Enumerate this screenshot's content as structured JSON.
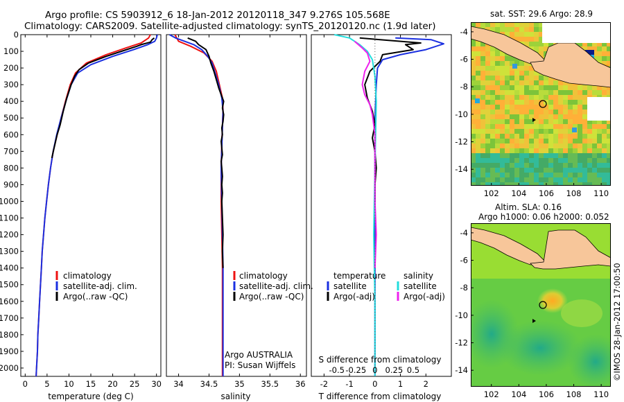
{
  "header": {
    "line1": "Argo profile: CS 5903912_6 18-Jan-2012 20120118_347 9.276S 105.568E",
    "line2": "Climatology: CARS2009. Satellite-adjusted climatology: synTS_20120120.nc (1.9d later)"
  },
  "colors": {
    "climatology": "#ee1111",
    "satellite": "#1a2fe0",
    "argo": "#000000",
    "sat_salt": "#22dddd",
    "argo_adj": "#ee22ee",
    "land": "#f7c69a",
    "sea": "#88cc44"
  },
  "chart_data": [
    {
      "type": "line",
      "name": "temperature",
      "xlabel": "temperature (deg C)",
      "xlim": [
        -1,
        31
      ],
      "xticks": [
        0,
        5,
        10,
        15,
        20,
        25,
        30
      ],
      "ylim": [
        0,
        2050
      ],
      "yticks": [
        0,
        100,
        200,
        300,
        400,
        500,
        600,
        700,
        800,
        900,
        1000,
        1100,
        1200,
        1300,
        1400,
        1500,
        1600,
        1700,
        1800,
        1900,
        2000
      ],
      "legend": [
        "climatology",
        "satellite-adj. clim.",
        "Argo(..raw -QC)"
      ],
      "series": [
        {
          "name": "climatology",
          "color": "#ee1111",
          "points": [
            [
              28.6,
              0
            ],
            [
              28.2,
              20
            ],
            [
              26.5,
              50
            ],
            [
              23,
              80
            ],
            [
              18.5,
              120
            ],
            [
              14,
              170
            ],
            [
              11.5,
              230
            ],
            [
              10.3,
              300
            ],
            [
              9.2,
              400
            ],
            [
              8.2,
              500
            ],
            [
              7.3,
              600
            ],
            [
              6.4,
              700
            ],
            [
              5.8,
              800
            ],
            [
              5.3,
              900
            ],
            [
              4.9,
              1000
            ],
            [
              4.5,
              1100
            ],
            [
              4.2,
              1200
            ],
            [
              3.9,
              1300
            ],
            [
              3.7,
              1400
            ],
            [
              3.5,
              1500
            ],
            [
              3.3,
              1600
            ],
            [
              3.1,
              1700
            ],
            [
              2.9,
              1800
            ],
            [
              2.8,
              1900
            ],
            [
              2.6,
              2000
            ],
            [
              2.5,
              2050
            ]
          ]
        },
        {
          "name": "satellite-adj. clim.",
          "color": "#1a2fe0",
          "points": [
            [
              30.2,
              0
            ],
            [
              30,
              20
            ],
            [
              29.6,
              40
            ],
            [
              28,
              60
            ],
            [
              24.8,
              90
            ],
            [
              20,
              130
            ],
            [
              15,
              180
            ],
            [
              12,
              230
            ],
            [
              10.5,
              300
            ],
            [
              9.3,
              400
            ],
            [
              8.2,
              500
            ],
            [
              7.2,
              600
            ],
            [
              6.4,
              700
            ],
            [
              5.8,
              800
            ],
            [
              5.3,
              900
            ],
            [
              4.9,
              1000
            ],
            [
              4.5,
              1100
            ],
            [
              4.2,
              1200
            ],
            [
              3.9,
              1300
            ],
            [
              3.7,
              1400
            ],
            [
              3.5,
              1500
            ],
            [
              3.3,
              1600
            ],
            [
              3.1,
              1700
            ],
            [
              2.9,
              1800
            ],
            [
              2.8,
              1900
            ],
            [
              2.6,
              2000
            ],
            [
              2.5,
              2050
            ]
          ]
        },
        {
          "name": "Argo(..raw -QC)",
          "color": "#000000",
          "points": [
            [
              29.5,
              20
            ],
            [
              29,
              30
            ],
            [
              28.6,
              45
            ],
            [
              26.5,
              60
            ],
            [
              25.5,
              70
            ],
            [
              22,
              100
            ],
            [
              18.5,
              130
            ],
            [
              14.5,
              170
            ],
            [
              12.3,
              210
            ],
            [
              11.3,
              250
            ],
            [
              10.5,
              300
            ],
            [
              9.5,
              380
            ],
            [
              8.7,
              460
            ],
            [
              8,
              540
            ],
            [
              7.3,
              600
            ],
            [
              6.6,
              680
            ],
            [
              6.1,
              740
            ]
          ]
        }
      ]
    },
    {
      "type": "line",
      "name": "salinity",
      "xlabel": "salinity",
      "xlim": [
        33.8,
        36.1
      ],
      "xticks": [
        34,
        34.5,
        35,
        35.5,
        36
      ],
      "xticklabels": [
        "34",
        "34.5",
        "35",
        "35.5",
        "36"
      ],
      "ylim": [
        0,
        2050
      ],
      "legend": [
        "climatology",
        "satellite-adj. clim.",
        "Argo(..raw -QC)"
      ],
      "annotation": [
        "Argo AUSTRALIA",
        "PI: Susan Wijffels"
      ],
      "series": [
        {
          "name": "climatology",
          "color": "#ee1111",
          "points": [
            [
              33.94,
              0
            ],
            [
              34.0,
              40
            ],
            [
              34.2,
              70
            ],
            [
              34.42,
              110
            ],
            [
              34.55,
              160
            ],
            [
              34.62,
              220
            ],
            [
              34.67,
              300
            ],
            [
              34.72,
              380
            ],
            [
              34.73,
              450
            ],
            [
              34.72,
              550
            ],
            [
              34.71,
              650
            ],
            [
              34.7,
              800
            ],
            [
              34.7,
              1000
            ],
            [
              34.71,
              1200
            ],
            [
              34.72,
              1400
            ],
            [
              34.72,
              1600
            ],
            [
              34.72,
              1800
            ],
            [
              34.72,
              2000
            ],
            [
              34.72,
              2050
            ]
          ]
        },
        {
          "name": "satellite-adj. clim.",
          "color": "#1a2fe0",
          "points": [
            [
              33.85,
              0
            ],
            [
              33.95,
              20
            ],
            [
              34.1,
              40
            ],
            [
              34.25,
              60
            ],
            [
              34.38,
              90
            ],
            [
              34.48,
              130
            ],
            [
              34.55,
              170
            ],
            [
              34.6,
              230
            ],
            [
              34.66,
              300
            ],
            [
              34.71,
              380
            ],
            [
              34.73,
              460
            ],
            [
              34.72,
              560
            ],
            [
              34.71,
              680
            ],
            [
              34.7,
              800
            ],
            [
              34.71,
              1000
            ],
            [
              34.72,
              1200
            ],
            [
              34.73,
              1400
            ],
            [
              34.73,
              1600
            ],
            [
              34.73,
              1800
            ],
            [
              34.73,
              2000
            ],
            [
              34.73,
              2050
            ]
          ]
        },
        {
          "name": "Argo(..raw -QC)",
          "color": "#000000",
          "points": [
            [
              34.15,
              20
            ],
            [
              34.28,
              40
            ],
            [
              34.33,
              60
            ],
            [
              34.45,
              90
            ],
            [
              34.5,
              130
            ],
            [
              34.53,
              170
            ],
            [
              34.58,
              220
            ],
            [
              34.62,
              270
            ],
            [
              34.66,
              320
            ],
            [
              34.7,
              360
            ],
            [
              34.74,
              400
            ],
            [
              34.72,
              440
            ],
            [
              34.74,
              480
            ],
            [
              34.73,
              520
            ],
            [
              34.71,
              560
            ],
            [
              34.72,
              600
            ],
            [
              34.7,
              640
            ],
            [
              34.71,
              680
            ],
            [
              34.72,
              720
            ],
            [
              34.7,
              760
            ],
            [
              34.71,
              800
            ],
            [
              34.72,
              850
            ],
            [
              34.71,
              900
            ],
            [
              34.72,
              950
            ],
            [
              34.71,
              1000
            ],
            [
              34.72,
              1100
            ],
            [
              34.73,
              1200
            ],
            [
              34.72,
              1300
            ],
            [
              34.73,
              1400
            ]
          ]
        }
      ]
    },
    {
      "type": "line",
      "name": "difference",
      "xlabel": "T difference from climatology",
      "xlim": [
        -2.5,
        3
      ],
      "xticks": [
        -2,
        -1,
        0,
        1,
        2
      ],
      "top_axis_label": "S difference from climatology",
      "top_ticks": [
        "-0.5",
        "-0.25",
        "0",
        "0.25",
        "0.5"
      ],
      "legend_temperature": {
        "title": "temperature",
        "items": [
          "satellite",
          "Argo(-adj)"
        ]
      },
      "legend_salinity": {
        "title": "salinity",
        "items": [
          "satellite",
          "Argo(-adj)"
        ]
      },
      "series": [
        {
          "name": "T satellite",
          "color": "#1a2fe0",
          "points": [
            [
              0.8,
              20
            ],
            [
              2.2,
              30
            ],
            [
              2.7,
              55
            ],
            [
              2,
              90
            ],
            [
              1,
              120
            ],
            [
              0.3,
              150
            ],
            [
              0.1,
              200
            ],
            [
              0.05,
              300
            ],
            [
              0,
              500
            ],
            [
              0,
              800
            ],
            [
              0,
              1200
            ],
            [
              0,
              1600
            ],
            [
              0,
              2050
            ]
          ]
        },
        {
          "name": "T Argo(-adj)",
          "color": "#000000",
          "points": [
            [
              -0.6,
              20
            ],
            [
              0.2,
              30
            ],
            [
              1.8,
              50
            ],
            [
              1.2,
              60
            ],
            [
              1.5,
              90
            ],
            [
              0.3,
              120
            ],
            [
              0.2,
              160
            ],
            [
              -0.2,
              220
            ],
            [
              -0.4,
              300
            ],
            [
              -0.3,
              380
            ],
            [
              -0.1,
              460
            ],
            [
              0,
              540
            ],
            [
              -0.1,
              620
            ],
            [
              0,
              700
            ],
            [
              0.05,
              800
            ],
            [
              0,
              900
            ],
            [
              0,
              1000
            ]
          ]
        },
        {
          "name": "S satellite",
          "color": "#22dddd",
          "points": [
            [
              -1.6,
              0
            ],
            [
              -1,
              20
            ],
            [
              -0.6,
              60
            ],
            [
              -0.3,
              100
            ],
            [
              -0.1,
              150
            ],
            [
              0,
              250
            ],
            [
              0.05,
              400
            ],
            [
              0,
              800
            ],
            [
              -0.05,
              1200
            ],
            [
              0,
              1600
            ],
            [
              0,
              2050
            ]
          ]
        },
        {
          "name": "S Argo(-adj)",
          "color": "#ee22ee",
          "points": [
            [
              -0.8,
              40
            ],
            [
              -0.5,
              80
            ],
            [
              -0.3,
              110
            ],
            [
              -0.2,
              160
            ],
            [
              -0.4,
              220
            ],
            [
              -0.5,
              300
            ],
            [
              -0.4,
              360
            ],
            [
              -0.2,
              420
            ],
            [
              -0.1,
              480
            ],
            [
              0,
              600
            ],
            [
              0,
              800
            ],
            [
              0,
              1000
            ],
            [
              0.05,
              1200
            ],
            [
              0,
              1400
            ]
          ]
        }
      ]
    },
    {
      "type": "heatmap",
      "name": "sst_map",
      "title": "sat. SST: 29.6  Argo: 28.9",
      "xticks": [
        "102",
        "104",
        "106",
        "108",
        "110"
      ],
      "yticks": [
        "-4",
        "-6",
        "-8",
        "-10",
        "-12",
        "-14"
      ],
      "float_position": [
        105.568,
        -9.276
      ]
    },
    {
      "type": "heatmap",
      "name": "sla_map",
      "title_line1": "Altim. SLA: 0.16",
      "title_line2": "Argo h1000: 0.06  h2000: 0.052",
      "xticks": [
        "102",
        "104",
        "106",
        "108",
        "110"
      ],
      "yticks": [
        "-4",
        "-6",
        "-8",
        "-10",
        "-12",
        "-14"
      ],
      "float_position": [
        105.568,
        -9.276
      ]
    }
  ],
  "footer": {
    "credit": "©IMOS 28-Jan-2012 17:00:50"
  }
}
